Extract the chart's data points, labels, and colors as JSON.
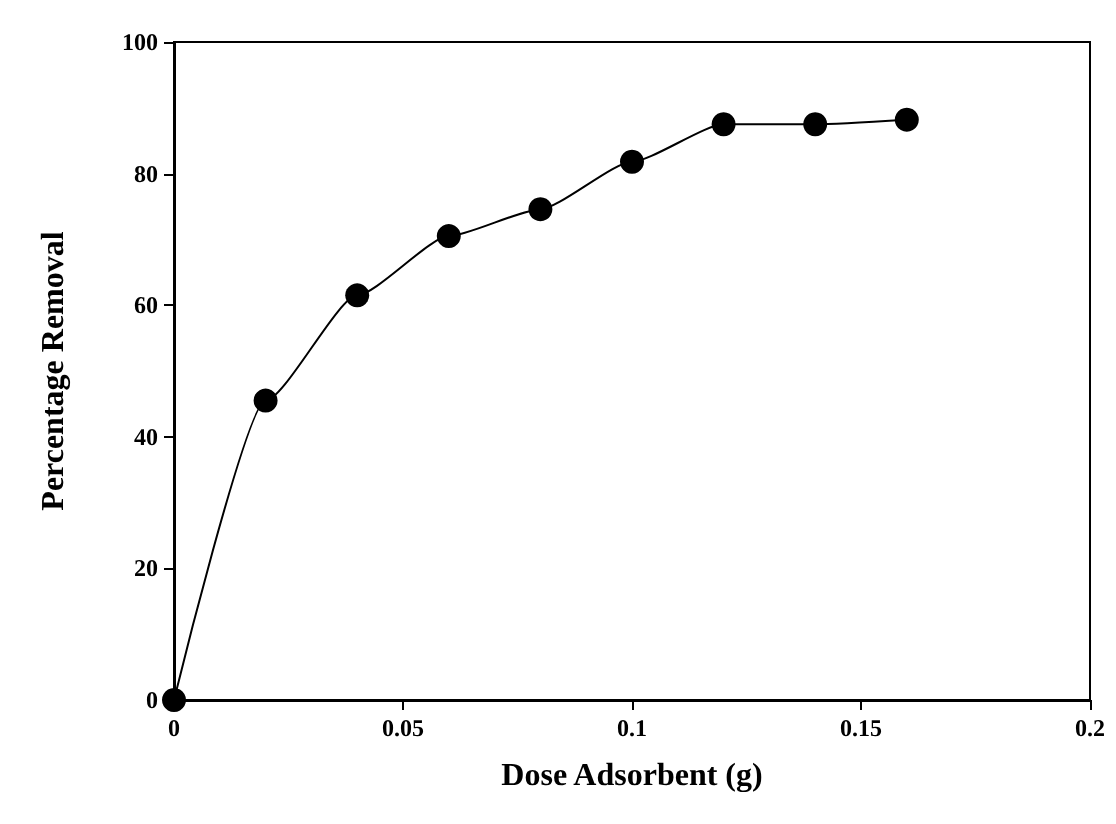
{
  "chart_data": {
    "type": "line",
    "xlabel": "Dose Adsorbent (g)",
    "ylabel": "Percentage Removal",
    "x": [
      0,
      0.02,
      0.04,
      0.06,
      0.08,
      0.1,
      0.12,
      0.14,
      0.16
    ],
    "series": [
      {
        "color": "#000000",
        "values": [
          0,
          45.5,
          61.5,
          70.5,
          74.6,
          81.8,
          87.5,
          87.5,
          88.2
        ]
      }
    ],
    "xlim": [
      0,
      0.2
    ],
    "xticks": [
      0,
      0.05,
      0.1,
      0.15,
      0.2
    ],
    "ylim": [
      0,
      100
    ],
    "yticks": [
      0,
      20,
      40,
      60,
      80,
      100
    ],
    "grid": false,
    "marker": "circle",
    "line_style": "solid"
  }
}
